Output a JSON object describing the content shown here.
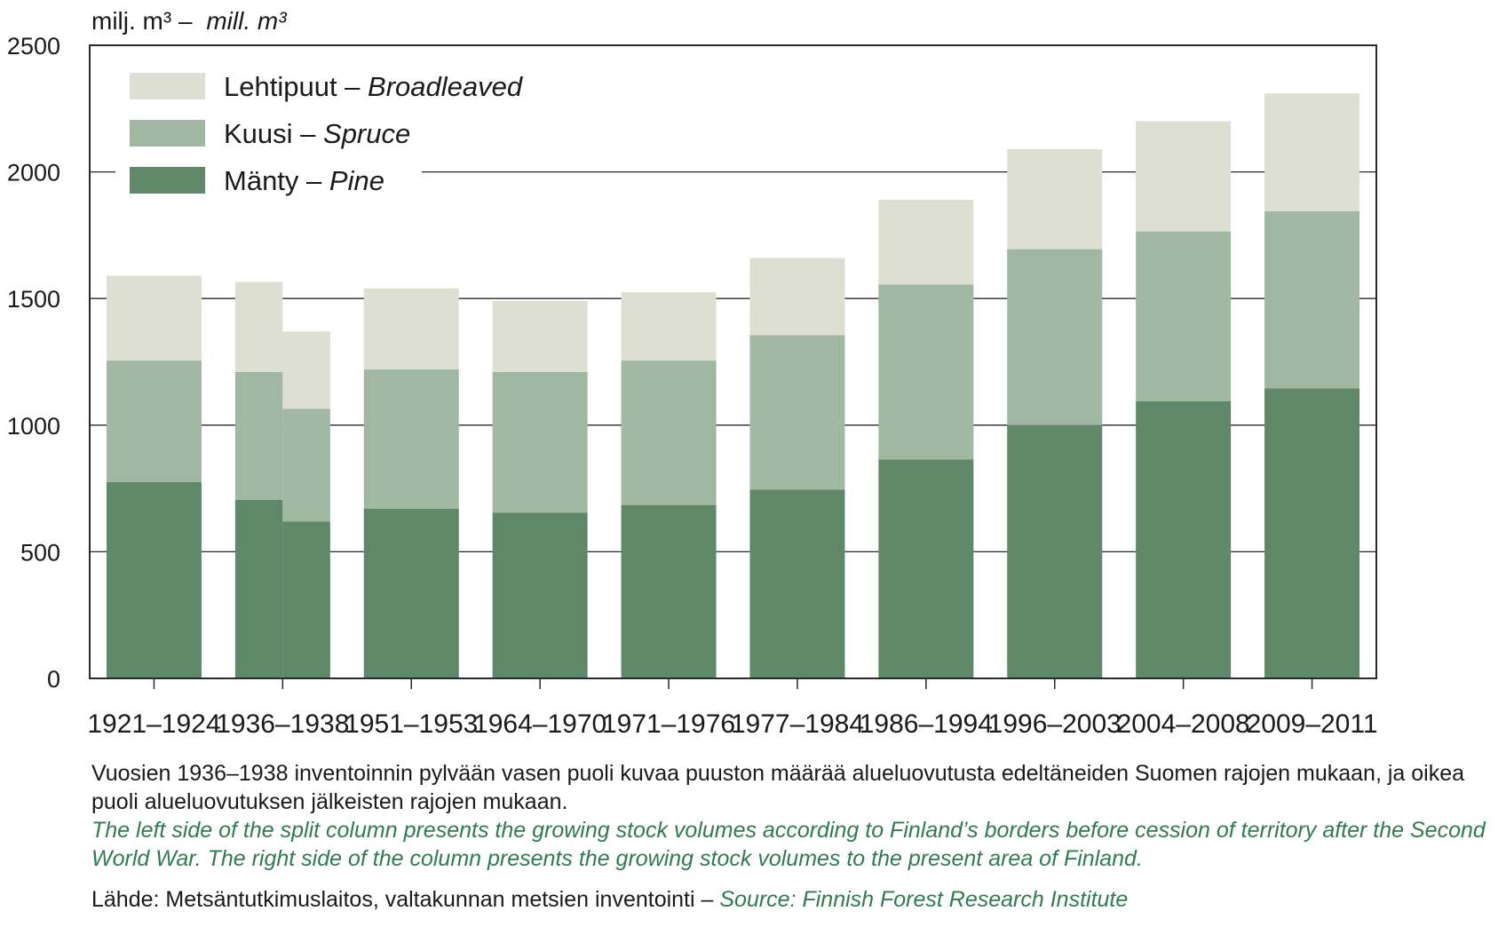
{
  "chart_data": {
    "type": "bar",
    "stacked": true,
    "ylabel_fi": "milj. m³ –",
    "ylabel_en": "mill. m³",
    "ylim": [
      0,
      2500
    ],
    "yticks": [
      "0",
      "500",
      "1000",
      "1500",
      "2000",
      "2500"
    ],
    "grid": true,
    "legend_position": "top-left",
    "categories": [
      "1921–1924",
      "1936–1938",
      "1951–1953",
      "1964–1970",
      "1971–1976",
      "1977–1984",
      "1986–1994",
      "1996–2003",
      "2004–2008",
      "2009–2011"
    ],
    "series": [
      {
        "name_fi": "Mänty –",
        "name_en": "Pine",
        "color": "#5e8868",
        "values": [
          775,
          705,
          670,
          655,
          685,
          745,
          865,
          1000,
          1095,
          1145
        ],
        "split_right": 620
      },
      {
        "name_fi": "Kuusi –",
        "name_en": "Spruce",
        "color": "#a0b8a2",
        "values": [
          480,
          505,
          550,
          555,
          570,
          610,
          690,
          695,
          670,
          700
        ],
        "split_right": 445
      },
      {
        "name_fi": "Lehtipuut –",
        "name_en": "Broadleaved",
        "color": "#dcdfd1",
        "values": [
          335,
          355,
          320,
          280,
          270,
          305,
          335,
          395,
          435,
          465
        ],
        "split_right": 305
      }
    ],
    "split_category": "1936–1938"
  },
  "notes": {
    "fi": "Vuosien 1936–1938 inventoinnin pylvään vasen puoli kuvaa puuston määrää alueluovutusta edeltäneiden Suomen rajojen mukaan, ja oikea puoli alueluovutuksen jälkeisten rajojen mukaan.",
    "en": "The left side of the split column presents the growing stock volumes according to Finland’s borders before cession of territory after the Second World War. The right side of the column presents the growing stock volumes to the present area of Finland.",
    "source_fi": "Lähde: Metsäntutkimuslaitos, valtakunnan metsien inventointi –",
    "source_en": "Source: Finnish Forest Research Institute"
  }
}
